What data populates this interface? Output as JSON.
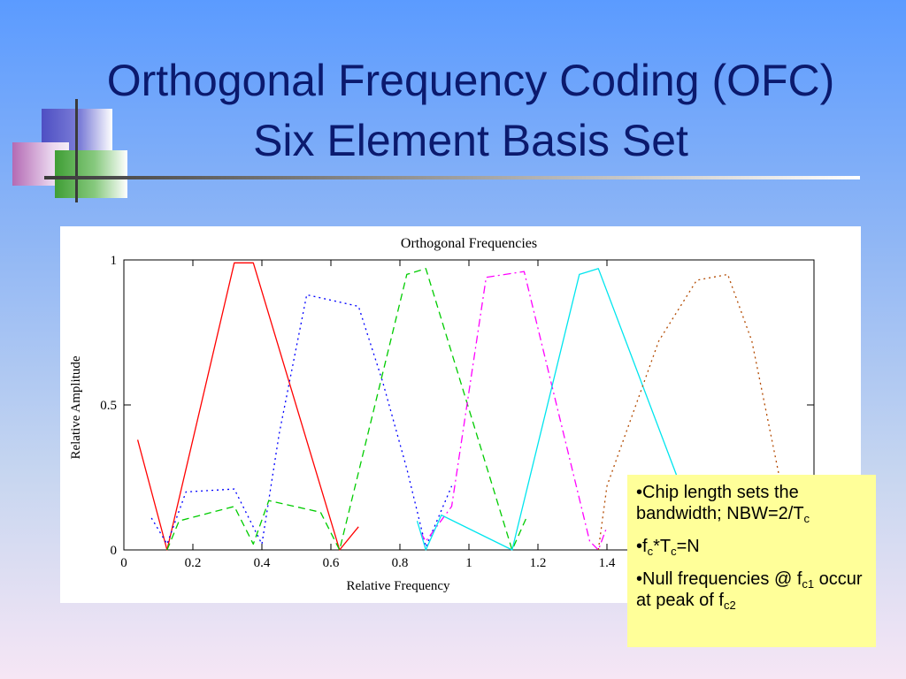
{
  "slide": {
    "title_line1": "Orthogonal Frequency Coding (OFC)",
    "title_line2": "Six Element Basis Set"
  },
  "notes": {
    "b1_text": "•Chip length sets the bandwidth; NBW=2/T",
    "b1_sub": "c",
    "b2_pre": "•f",
    "b2_sub1": "c",
    "b2_mid": "*T",
    "b2_sub2": "c",
    "b2_post": "=N",
    "b3_pre": "•Null frequencies @ f",
    "b3_sub1": "c1",
    "b3_mid": " occur at peak of f",
    "b3_sub2": "c2"
  },
  "chart_data": {
    "type": "line",
    "title": "Orthogonal Frequencies",
    "xlabel": "Relative Frequency",
    "ylabel": "Relative Amplitude",
    "xlim": [
      0,
      2
    ],
    "ylim": [
      0,
      1
    ],
    "xticks": [
      "0",
      "0.2",
      "0.4",
      "0.6",
      "0.8",
      "1",
      "1.2",
      "1.4"
    ],
    "yticks": [
      "0",
      "0.5",
      "1"
    ],
    "grid": false,
    "series": [
      {
        "color": "#ff0000",
        "dash": "solid",
        "x": [
          0.04,
          0.125,
          0.32,
          0.375,
          0.625,
          0.68
        ],
        "y": [
          0.38,
          0.0,
          0.99,
          0.99,
          0.0,
          0.08
        ]
      },
      {
        "color": "#0000ff",
        "dash": "dotted",
        "x": [
          0.08,
          0.125,
          0.18,
          0.32,
          0.4,
          0.45,
          0.53,
          0.68,
          0.75,
          0.82,
          0.875,
          0.95
        ],
        "y": [
          0.11,
          0.02,
          0.2,
          0.21,
          0.02,
          0.4,
          0.88,
          0.84,
          0.58,
          0.28,
          0.01,
          0.22
        ]
      },
      {
        "color": "#00cc00",
        "dash": "dashed",
        "x": [
          0.125,
          0.16,
          0.32,
          0.375,
          0.42,
          0.57,
          0.625,
          0.82,
          0.875,
          1.125,
          1.17
        ],
        "y": [
          0.0,
          0.1,
          0.15,
          0.02,
          0.17,
          0.13,
          0.0,
          0.95,
          0.97,
          0.0,
          0.12
        ]
      },
      {
        "color": "#ff00ff",
        "dash": "dashdot",
        "x": [
          0.86,
          0.875,
          0.95,
          1.05,
          1.16,
          1.35,
          1.375,
          1.4
        ],
        "y": [
          0.06,
          0.03,
          0.15,
          0.94,
          0.96,
          0.03,
          0.0,
          0.08
        ]
      },
      {
        "color": "#00e5ee",
        "dash": "solid",
        "x": [
          0.85,
          0.875,
          0.92,
          1.125,
          1.32,
          1.375,
          1.62
        ],
        "y": [
          0.1,
          0.0,
          0.12,
          0.0,
          0.95,
          0.97,
          0.2
        ]
      },
      {
        "color": "#b34a00",
        "dash": "dotted",
        "x": [
          1.375,
          1.4,
          1.55,
          1.66,
          1.75,
          1.82,
          1.9
        ],
        "y": [
          0.0,
          0.22,
          0.72,
          0.93,
          0.95,
          0.72,
          0.25
        ]
      }
    ]
  }
}
